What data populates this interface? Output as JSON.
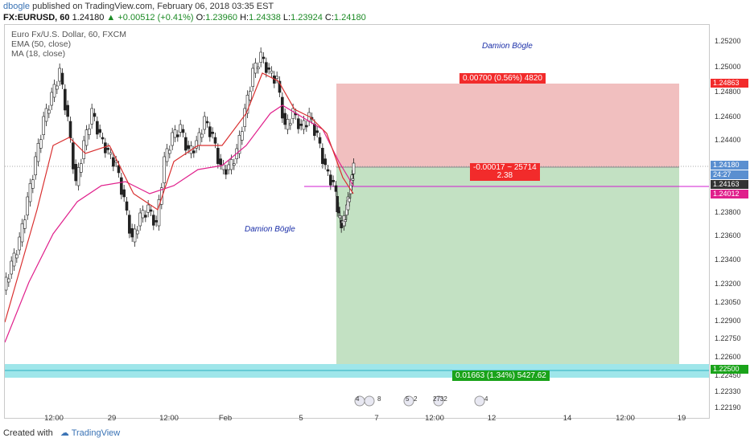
{
  "header": {
    "user": "dbogle",
    "published_text": " published on TradingView.com, February 06, 2018 03:35 EST",
    "symbol_line": "FX:EURUSD, 60",
    "last": "1.24180",
    "change": "▲ +0.00512 (+0.41%)",
    "open_label": "O:",
    "open": "1.23960",
    "high_label": "H:",
    "high": "1.24338",
    "low_label": "L:",
    "low": "1.23924",
    "close_label": "C:",
    "close": "1.24180"
  },
  "legend": {
    "title": "Euro Fx/U.S. Dollar, 60, FXCM",
    "ema": "EMA (50, close)",
    "ma": "MA (18, close)"
  },
  "watermarks": [
    "Damion Bögle",
    "Damion Bögle"
  ],
  "position_tool": {
    "target_label": "0.00700 (0.56%) 4820",
    "center_label_1": "-0.00017 ~ 25714",
    "center_label_2": "2.38",
    "stop_label": "0.01663 (1.34%) 5427.62"
  },
  "price_axis": {
    "ticks": [
      "1.25200",
      "1.25000",
      "1.24800",
      "1.24600",
      "1.24400",
      "1.23800",
      "1.23600",
      "1.23400",
      "1.23200",
      "1.23050",
      "1.22900",
      "1.22750",
      "1.22600",
      "1.22450",
      "1.22330",
      "1.22190"
    ],
    "labels": {
      "target": "1.24863",
      "current": "1.24180",
      "countdown": "24:27",
      "line": "1.24163",
      "ema": "1.24012",
      "stop": "1.22500"
    }
  },
  "time_axis": [
    "12:00",
    "29",
    "12:00",
    "Feb",
    "5",
    "7",
    "12:00",
    "12",
    "14",
    "12:00",
    "19"
  ],
  "events": [
    "4",
    "8",
    "5",
    "2",
    "2732",
    "4"
  ],
  "footer": {
    "created_with": "Created with",
    "brand": "TradingView"
  },
  "colors": {
    "up": "#1b8a24",
    "target_fill": "#f0bcbc",
    "stop_fill": "#c0dfc0",
    "label_red": "#f22b2b",
    "label_green": "#1aa31a",
    "ema": "#e0208c",
    "ma": "#d93030",
    "band": "#9fe6ea",
    "hline": "#d21bd2"
  }
}
